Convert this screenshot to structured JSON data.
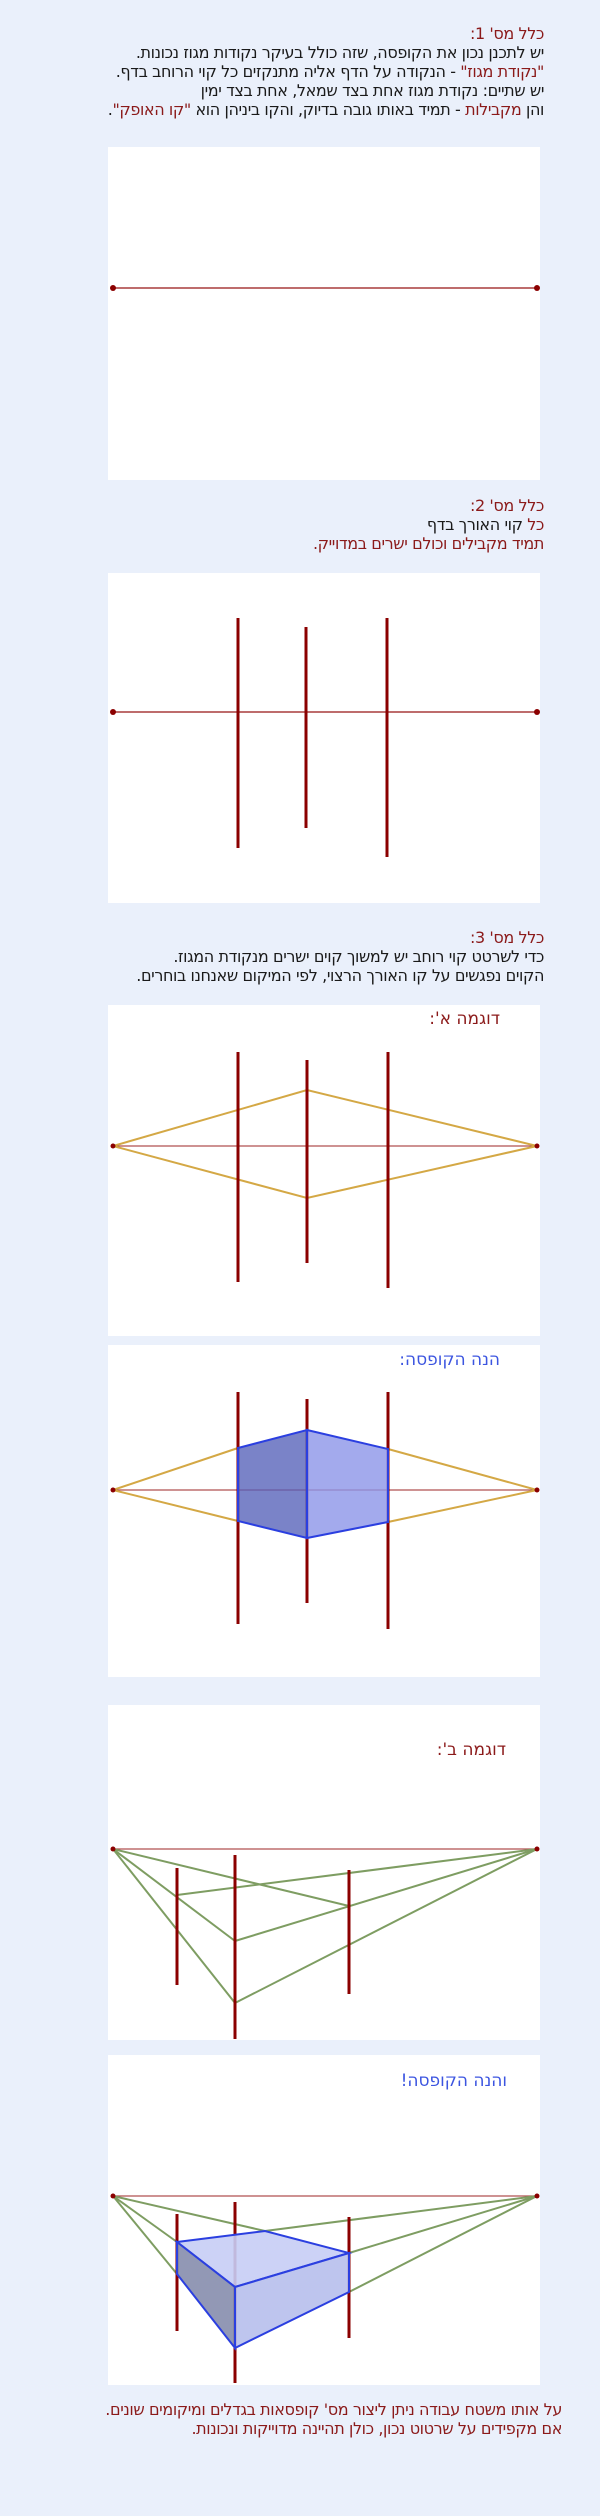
{
  "colors": {
    "accent_red": "#8b1a1a",
    "box_blue": "#3c55e0",
    "guide_yellow": "#d4a845",
    "guide_green": "#7e9d62",
    "vertical_red": "#8b0000"
  },
  "rule1": {
    "title": "כלל מס' 1:",
    "line1": "יש לתכנן נכון את הקופסה, שזה כולל בעיקר נקודות מגוז נכונות.",
    "line2_red": "\"נקודת מגוז\"",
    "line2_rest": " - הנקודה על הדף אליה מתנקזים כל קוי הרוחב בדף.",
    "line3": "יש שתיים: נקודת מגוז אחת בצד שמאל, אחת בצד ימין",
    "line4_a": "והן ",
    "line4_red1": "מקבילות",
    "line4_b": " - תמיד באותו גובה בדיוק, והקו ביניהן הוא ",
    "line4_red2": "\"קו האופק\"",
    "line4_c": "."
  },
  "rule2": {
    "title": "כלל מס' 2:",
    "line1_red": "כל",
    "line1_rest": " קוי האורך בדף",
    "line2": "תמיד מקבילים וכולם ישרים במדוייק."
  },
  "rule3": {
    "title": "כלל מס' 3:",
    "line1": "כדי לשרטט קוי רוחב יש למשוך קוים ישרים מנקודת המגוז.",
    "line2": "הקוים נפגשים על קו האורך הרצוי, לפי המיקום שאנחנו בוחרים."
  },
  "example_a": {
    "title": "דוגמה א':"
  },
  "box_a": {
    "title": "הנה הקופסה:"
  },
  "example_b": {
    "title": "דוגמה ב':"
  },
  "box_b": {
    "title": "והנה הקופסה!"
  },
  "closing": {
    "line1": "על אותו משטח עבודה ניתן ליצור מס' קופסאות בגדלים ומיקומים שונים.",
    "line2": "אם מקפידים על שרטוט נכון, כולן תהיינה מדוייקות ונכונות."
  }
}
